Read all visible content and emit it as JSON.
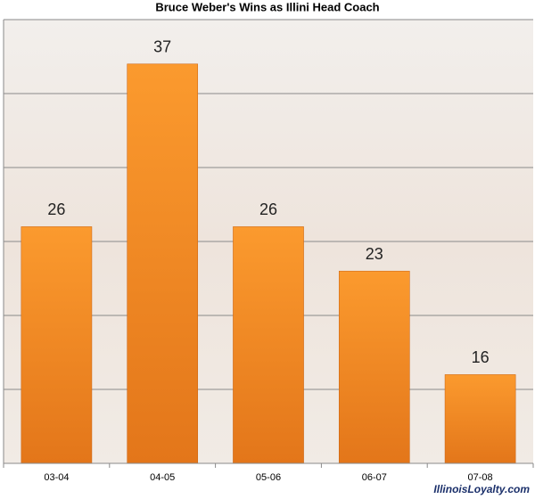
{
  "chart_data": {
    "type": "bar",
    "title": "Bruce Weber's Wins as Illini Head Coach",
    "categories": [
      "03-04",
      "04-05",
      "05-06",
      "06-07",
      "07-08"
    ],
    "values": [
      26,
      37,
      26,
      23,
      16
    ],
    "color": "#f28a1e",
    "ylim": [
      10,
      40
    ],
    "yticks": [
      10,
      15,
      20,
      25,
      30,
      35,
      40
    ],
    "grid": true,
    "watermark": "IllinoisLoyalty.com"
  }
}
